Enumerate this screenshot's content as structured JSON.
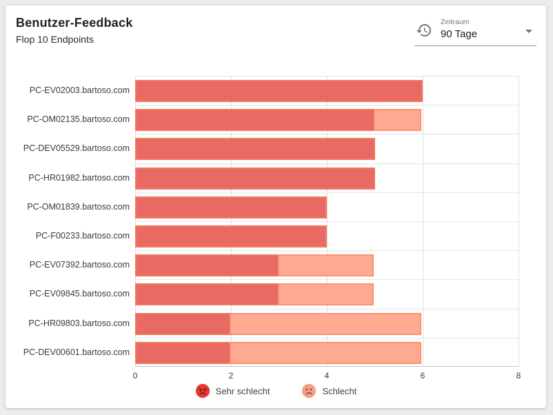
{
  "header": {
    "title": "Benutzer-Feedback",
    "subtitle": "Flop 10 Endpoints"
  },
  "period_selector": {
    "label": "Zeitraum",
    "value": "90 Tage",
    "icon": "history-icon"
  },
  "chart_data": {
    "type": "bar",
    "orientation": "horizontal",
    "stacked": true,
    "title": "Benutzer-Feedback — Flop 10 Endpoints",
    "categories": [
      "PC-EV02003.bartoso.com",
      "PC-OM02135.bartoso.com",
      "PC-DEV05529.bartoso.com",
      "PC-HR01982.bartoso.com",
      "PC-OM01839.bartoso.com",
      "PC-F00233.bartoso.com",
      "PC-EV07392.bartoso.com",
      "PC-EV09845.bartoso.com",
      "PC-HR09803.bartoso.com",
      "PC-DEV00601.bartoso.com"
    ],
    "series": [
      {
        "name": "Sehr schlecht",
        "icon": "angry-face-icon",
        "fill": "#e96a64",
        "border": "#f4775c",
        "values": [
          6,
          5,
          5,
          5,
          4,
          4,
          3,
          3,
          2,
          2
        ]
      },
      {
        "name": "Schlecht",
        "icon": "sad-face-icon",
        "fill": "#ffab91",
        "border": "#ff8f72",
        "values": [
          0,
          1,
          0,
          0,
          0,
          0,
          2,
          2,
          4,
          4
        ]
      }
    ],
    "xlim": [
      0,
      8
    ],
    "x_ticks": [
      0,
      2,
      4,
      6,
      8
    ],
    "grid": true,
    "legend_position": "bottom"
  },
  "legend_icons": {
    "angry_face_color": "#e53935",
    "angry_face_features": "#7f1410",
    "sad_face_color": "#f99d85",
    "sad_face_features": "#7b4a3e"
  },
  "colors": {
    "page_bg": "#ececec",
    "card_bg": "#ffffff",
    "gridline": "#e0e0e0"
  }
}
